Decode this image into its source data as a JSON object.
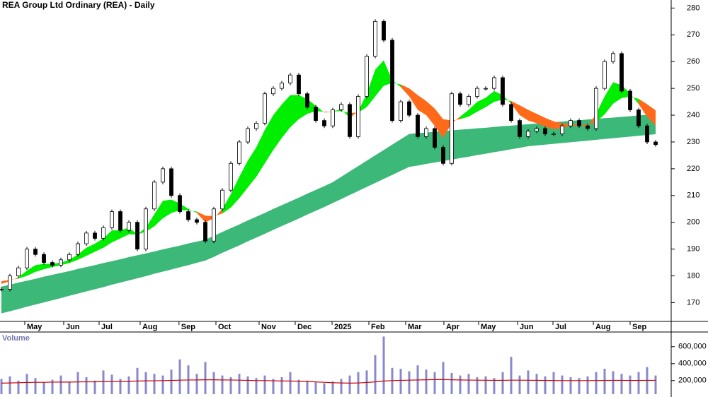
{
  "chart_data": {
    "type": "stock",
    "title": "REA Group Ltd Ordinary (REA) - Daily",
    "ylim": [
      163,
      283
    ],
    "yticks": [
      170,
      180,
      190,
      200,
      210,
      220,
      230,
      240,
      250,
      260,
      270,
      280
    ],
    "xticks": [
      {
        "value": 2.75,
        "label": "May"
      },
      {
        "value": 7.33,
        "label": "Jun"
      },
      {
        "value": 11.5,
        "label": "Jul"
      },
      {
        "value": 16.33,
        "label": "Aug"
      },
      {
        "value": 20.9,
        "label": "Sep"
      },
      {
        "value": 25.25,
        "label": "Oct"
      },
      {
        "value": 30.33,
        "label": "Nov"
      },
      {
        "value": 34.58,
        "label": "Dec"
      },
      {
        "value": 38.92,
        "label": "2025"
      },
      {
        "value": 43.25,
        "label": "Feb"
      },
      {
        "value": 47.58,
        "label": "Mar"
      },
      {
        "value": 52.08,
        "label": "Apr"
      },
      {
        "value": 56.17,
        "label": "May"
      },
      {
        "value": 60.75,
        "label": "Jun"
      },
      {
        "value": 64.92,
        "label": "Jul"
      },
      {
        "value": 69.67,
        "label": "Aug"
      },
      {
        "value": 74,
        "label": "Sep"
      }
    ],
    "close": [
      175,
      180,
      183,
      190,
      188,
      185,
      184,
      186,
      188,
      192,
      196,
      194,
      198,
      204,
      197,
      200,
      190,
      205,
      215,
      220,
      210,
      204,
      201,
      200,
      193,
      205,
      212,
      222,
      230,
      235,
      237,
      248,
      250,
      252,
      255,
      248,
      243,
      238,
      236,
      242,
      244,
      232,
      247,
      262,
      275,
      268,
      238,
      245,
      240,
      232,
      235,
      228,
      222,
      248,
      244,
      247,
      250,
      250,
      254,
      244,
      238,
      232,
      234,
      235,
      233,
      233,
      236,
      238,
      236,
      235,
      250,
      260,
      263,
      249,
      242,
      236,
      230,
      229
    ],
    "short_fast": [
      177,
      178,
      179.5,
      182,
      184,
      184.5,
      184.5,
      185,
      186,
      188,
      190.5,
      192,
      194,
      197,
      197,
      198,
      195.5,
      198,
      203,
      208,
      208.5,
      207,
      205,
      203.5,
      200,
      201.5,
      205,
      210.5,
      217,
      223,
      228,
      234.5,
      240,
      244,
      247.5,
      247.5,
      246,
      243.5,
      241,
      241.3,
      242.3,
      239,
      241.5,
      248,
      257,
      260.5,
      253,
      250.5,
      247,
      242,
      240,
      236,
      231.5,
      237,
      239.5,
      242,
      245,
      246.5,
      249,
      247.5,
      244.3,
      240,
      238,
      237,
      235.7,
      234.8,
      235.2,
      236.1,
      236.1,
      235.7,
      240.5,
      247,
      252.3,
      251.2,
      248.1,
      244.1,
      239.4,
      236
    ],
    "short_slow": [
      178,
      178.5,
      179,
      180,
      181.5,
      182.5,
      183.3,
      184,
      184.8,
      186,
      187.5,
      189,
      190.5,
      192.5,
      194,
      195.5,
      195.5,
      196.5,
      198.5,
      201.5,
      203.5,
      204.5,
      204.5,
      204,
      202.5,
      202.3,
      203.3,
      205.5,
      209,
      213,
      217,
      222,
      227,
      231.5,
      235.5,
      238.5,
      240.5,
      241.5,
      241.3,
      241.3,
      241.6,
      240.8,
      241,
      243,
      247,
      251,
      252,
      251.5,
      250,
      247.5,
      245.3,
      242.5,
      238.5,
      238,
      238.5,
      239.5,
      241.3,
      243,
      245,
      245.8,
      245.3,
      243.7,
      242,
      240.5,
      239,
      237.7,
      236.9,
      236.7,
      236.5,
      236.3,
      237.5,
      240.3,
      244.3,
      246.4,
      246.9,
      246.1,
      244.1,
      241.8
    ],
    "long_upper": [
      176,
      176.7,
      177.5,
      178.2,
      178.9,
      179.7,
      180.4,
      181.1,
      181.8,
      182.6,
      183.3,
      184,
      184.8,
      185.5,
      186.2,
      187,
      187.7,
      188.4,
      189.1,
      189.9,
      190.6,
      191.3,
      192.1,
      192.8,
      193.5,
      194.9,
      196.4,
      197.8,
      199.2,
      200.7,
      202.1,
      203.5,
      205,
      206.4,
      207.8,
      209.2,
      210.7,
      212.1,
      213.5,
      215,
      217,
      219,
      221,
      223,
      225,
      227,
      229,
      231,
      233,
      233.3,
      233.5,
      233.8,
      234,
      234.3,
      234.6,
      234.8,
      235.1,
      235.3,
      235.6,
      235.9,
      236.1,
      236.4,
      236.6,
      236.9,
      237.1,
      237.4,
      237.6,
      237.9,
      238.1,
      238.4,
      238.6,
      238.9,
      239.1,
      239.4,
      239.6,
      239.9,
      240.1,
      240.3
    ],
    "long_lower": [
      166,
      166.8,
      167.6,
      168.5,
      169.3,
      170.1,
      170.9,
      171.7,
      172.6,
      173.4,
      174.2,
      175,
      175.8,
      176.7,
      177.5,
      178.3,
      179.1,
      179.9,
      180.8,
      181.6,
      182.4,
      183.2,
      184,
      184.9,
      185.7,
      187.1,
      188.6,
      190,
      191.4,
      192.9,
      194.3,
      195.7,
      197.2,
      198.6,
      200,
      201.4,
      202.9,
      204.3,
      205.7,
      207.2,
      208.7,
      210.2,
      211.7,
      213.2,
      214.7,
      216.2,
      217.7,
      219.2,
      220.7,
      221.2,
      221.8,
      222.3,
      222.9,
      223.4,
      224,
      224.5,
      225.1,
      225.6,
      226.2,
      226.7,
      227.3,
      227.8,
      228.4,
      228.7,
      229,
      229.3,
      229.6,
      229.9,
      230.2,
      230.5,
      230.8,
      231.1,
      231.4,
      231.7,
      232,
      232.3,
      232.6,
      232.9
    ],
    "up_color": "#00ee00",
    "down_color": "#ff6a1a",
    "long_color": "#3cb878",
    "volume_title": "Volume",
    "volume_color": "#8888cc",
    "volume_ma_color": "#cc0000",
    "volume_ylim": [
      40000,
      790000
    ],
    "volume_yticks": [
      {
        "value": 200000,
        "label": "200,000"
      },
      {
        "value": 400000,
        "label": "400,000"
      },
      {
        "value": 600000,
        "label": "600,000"
      }
    ],
    "volume": [
      220000,
      250000,
      200000,
      280000,
      230000,
      180000,
      210000,
      260000,
      190000,
      300000,
      240000,
      200000,
      320000,
      270000,
      220000,
      250000,
      350000,
      300000,
      280000,
      260000,
      330000,
      450000,
      380000,
      280000,
      420000,
      300000,
      260000,
      240000,
      280000,
      250000,
      230000,
      260000,
      220000,
      240000,
      300000,
      210000,
      200000,
      180000,
      170000,
      190000,
      220000,
      260000,
      300000,
      320000,
      500000,
      720000,
      350000,
      340000,
      310000,
      380000,
      330000,
      300000,
      420000,
      290000,
      260000,
      280000,
      240000,
      250000,
      230000,
      300000,
      480000,
      260000,
      320000,
      280000,
      250000,
      300000,
      260000,
      240000,
      230000,
      250000,
      300000,
      340000,
      310000,
      280000,
      260000,
      300000,
      360000,
      260000
    ],
    "volume_ma": [
      170000,
      172000,
      175000,
      178000,
      180000,
      180000,
      182000,
      183000,
      183000,
      185000,
      186000,
      186000,
      188000,
      190000,
      190000,
      192000,
      195000,
      197000,
      198000,
      200000,
      202000,
      205000,
      207000,
      208000,
      210000,
      210000,
      208000,
      207000,
      205000,
      203000,
      200000,
      200000,
      198000,
      196000,
      195000,
      193000,
      190000,
      185000,
      180000,
      175000,
      172000,
      170000,
      172000,
      178000,
      185000,
      195000,
      200000,
      203000,
      205000,
      208000,
      210000,
      212000,
      212000,
      210000,
      208000,
      206000,
      205000,
      204000,
      203000,
      203000,
      205000,
      205000,
      204000,
      203000,
      202000,
      201000,
      200000,
      200000,
      200000,
      200000,
      201000,
      202000,
      203000,
      203000,
      202000,
      202000,
      203000,
      203000
    ]
  }
}
